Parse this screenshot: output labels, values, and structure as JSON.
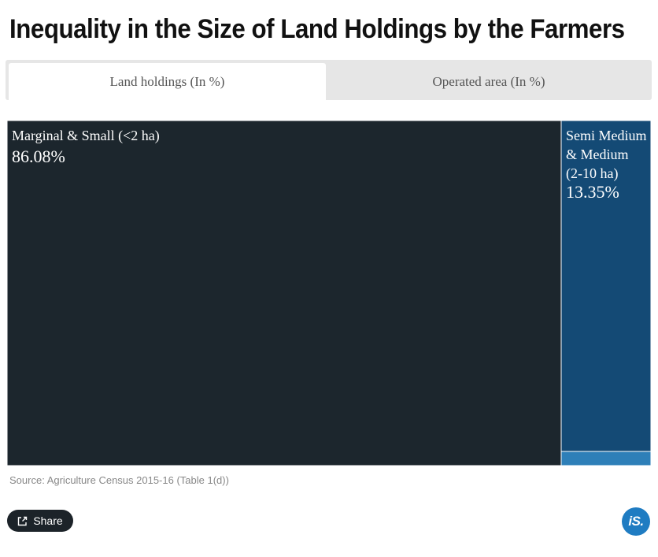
{
  "title": "Inequality in the Size of Land Holdings by the Farmers",
  "tabs": [
    {
      "label": "Land holdings (In %)",
      "active": true
    },
    {
      "label": "Operated area (In %)",
      "active": false
    }
  ],
  "chart_data": {
    "type": "treemap",
    "selected_view": "Land holdings (In %)",
    "items": [
      {
        "name": "Marginal & Small (<2 ha)",
        "value": 86.08,
        "value_label": "86.08%",
        "color": "#1c262d"
      },
      {
        "name": "Semi Medium & Medium (2-10 ha)",
        "value": 13.35,
        "value_label": "13.35%",
        "color": "#144a75"
      },
      {
        "name": "",
        "value": 0.57,
        "value_label": "",
        "color": "#2e7fb8"
      }
    ]
  },
  "source": "Source: Agriculture Census 2015-16 (Table 1(d))",
  "share_label": "Share",
  "logo_text": "iS."
}
